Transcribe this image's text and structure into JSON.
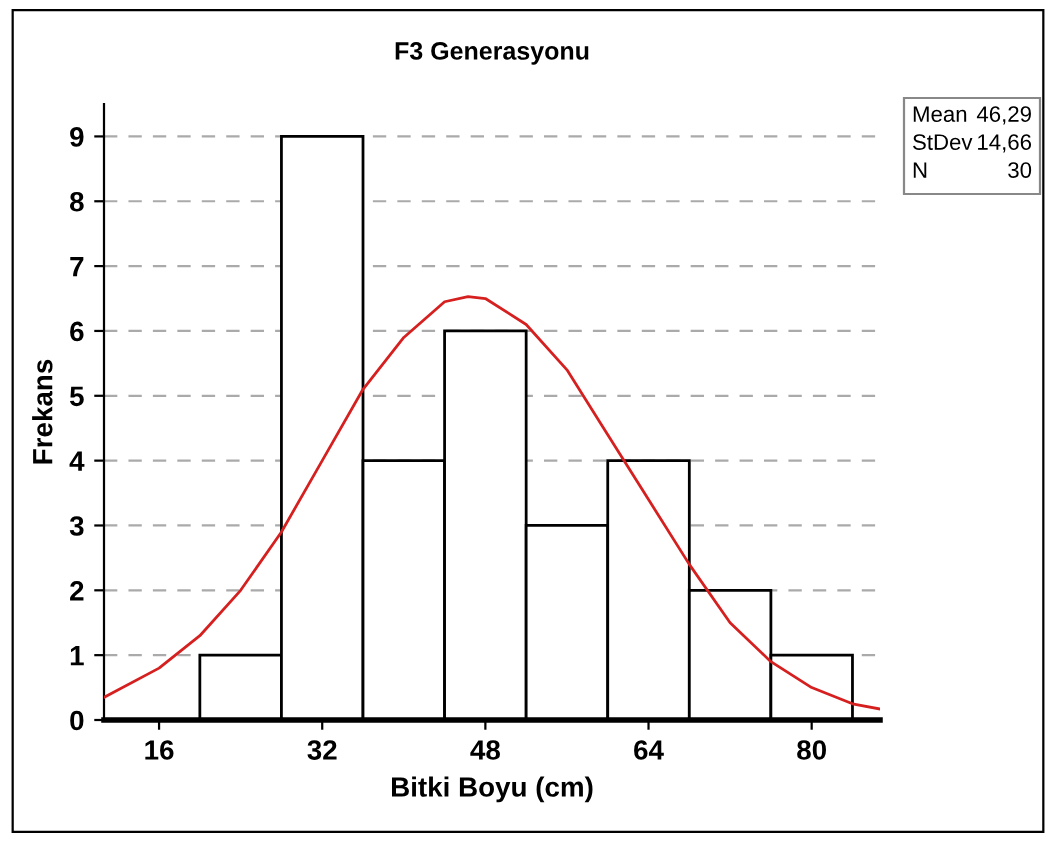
{
  "chart_data": {
    "type": "histogram",
    "title": "F3 Generasyonu",
    "xlabel": "Bitki Boyu (cm)",
    "ylabel": "Frekans",
    "bins": [
      20,
      28,
      36,
      44,
      52,
      60,
      68,
      76,
      84
    ],
    "values": [
      1,
      9,
      4,
      6,
      3,
      4,
      2,
      1
    ],
    "color": "#ffffff",
    "series": [
      {
        "type": "line",
        "color": "#d62020",
        "x": [
          10.6,
          16,
          20,
          24,
          28,
          32,
          36,
          40,
          44,
          46.3,
          48,
          52,
          56,
          60,
          64,
          68,
          72,
          76,
          80,
          84,
          86.7
        ],
        "values": [
          0.35,
          0.8,
          1.3,
          2.0,
          2.9,
          4.0,
          5.1,
          5.9,
          6.45,
          6.53,
          6.5,
          6.1,
          5.4,
          4.4,
          3.4,
          2.4,
          1.5,
          0.9,
          0.5,
          0.25,
          0.17
        ]
      }
    ],
    "xlim": [
      10.6,
      86.7
    ],
    "xticks": [
      16,
      32,
      48,
      64,
      80
    ],
    "ylim": [
      0,
      9.5
    ],
    "yticks": [
      0,
      1,
      2,
      3,
      4,
      5,
      6,
      7,
      8,
      9
    ],
    "grid": "y",
    "annotations": [
      "Mean 46,29",
      "StDev 14,66",
      "N 30"
    ]
  }
}
